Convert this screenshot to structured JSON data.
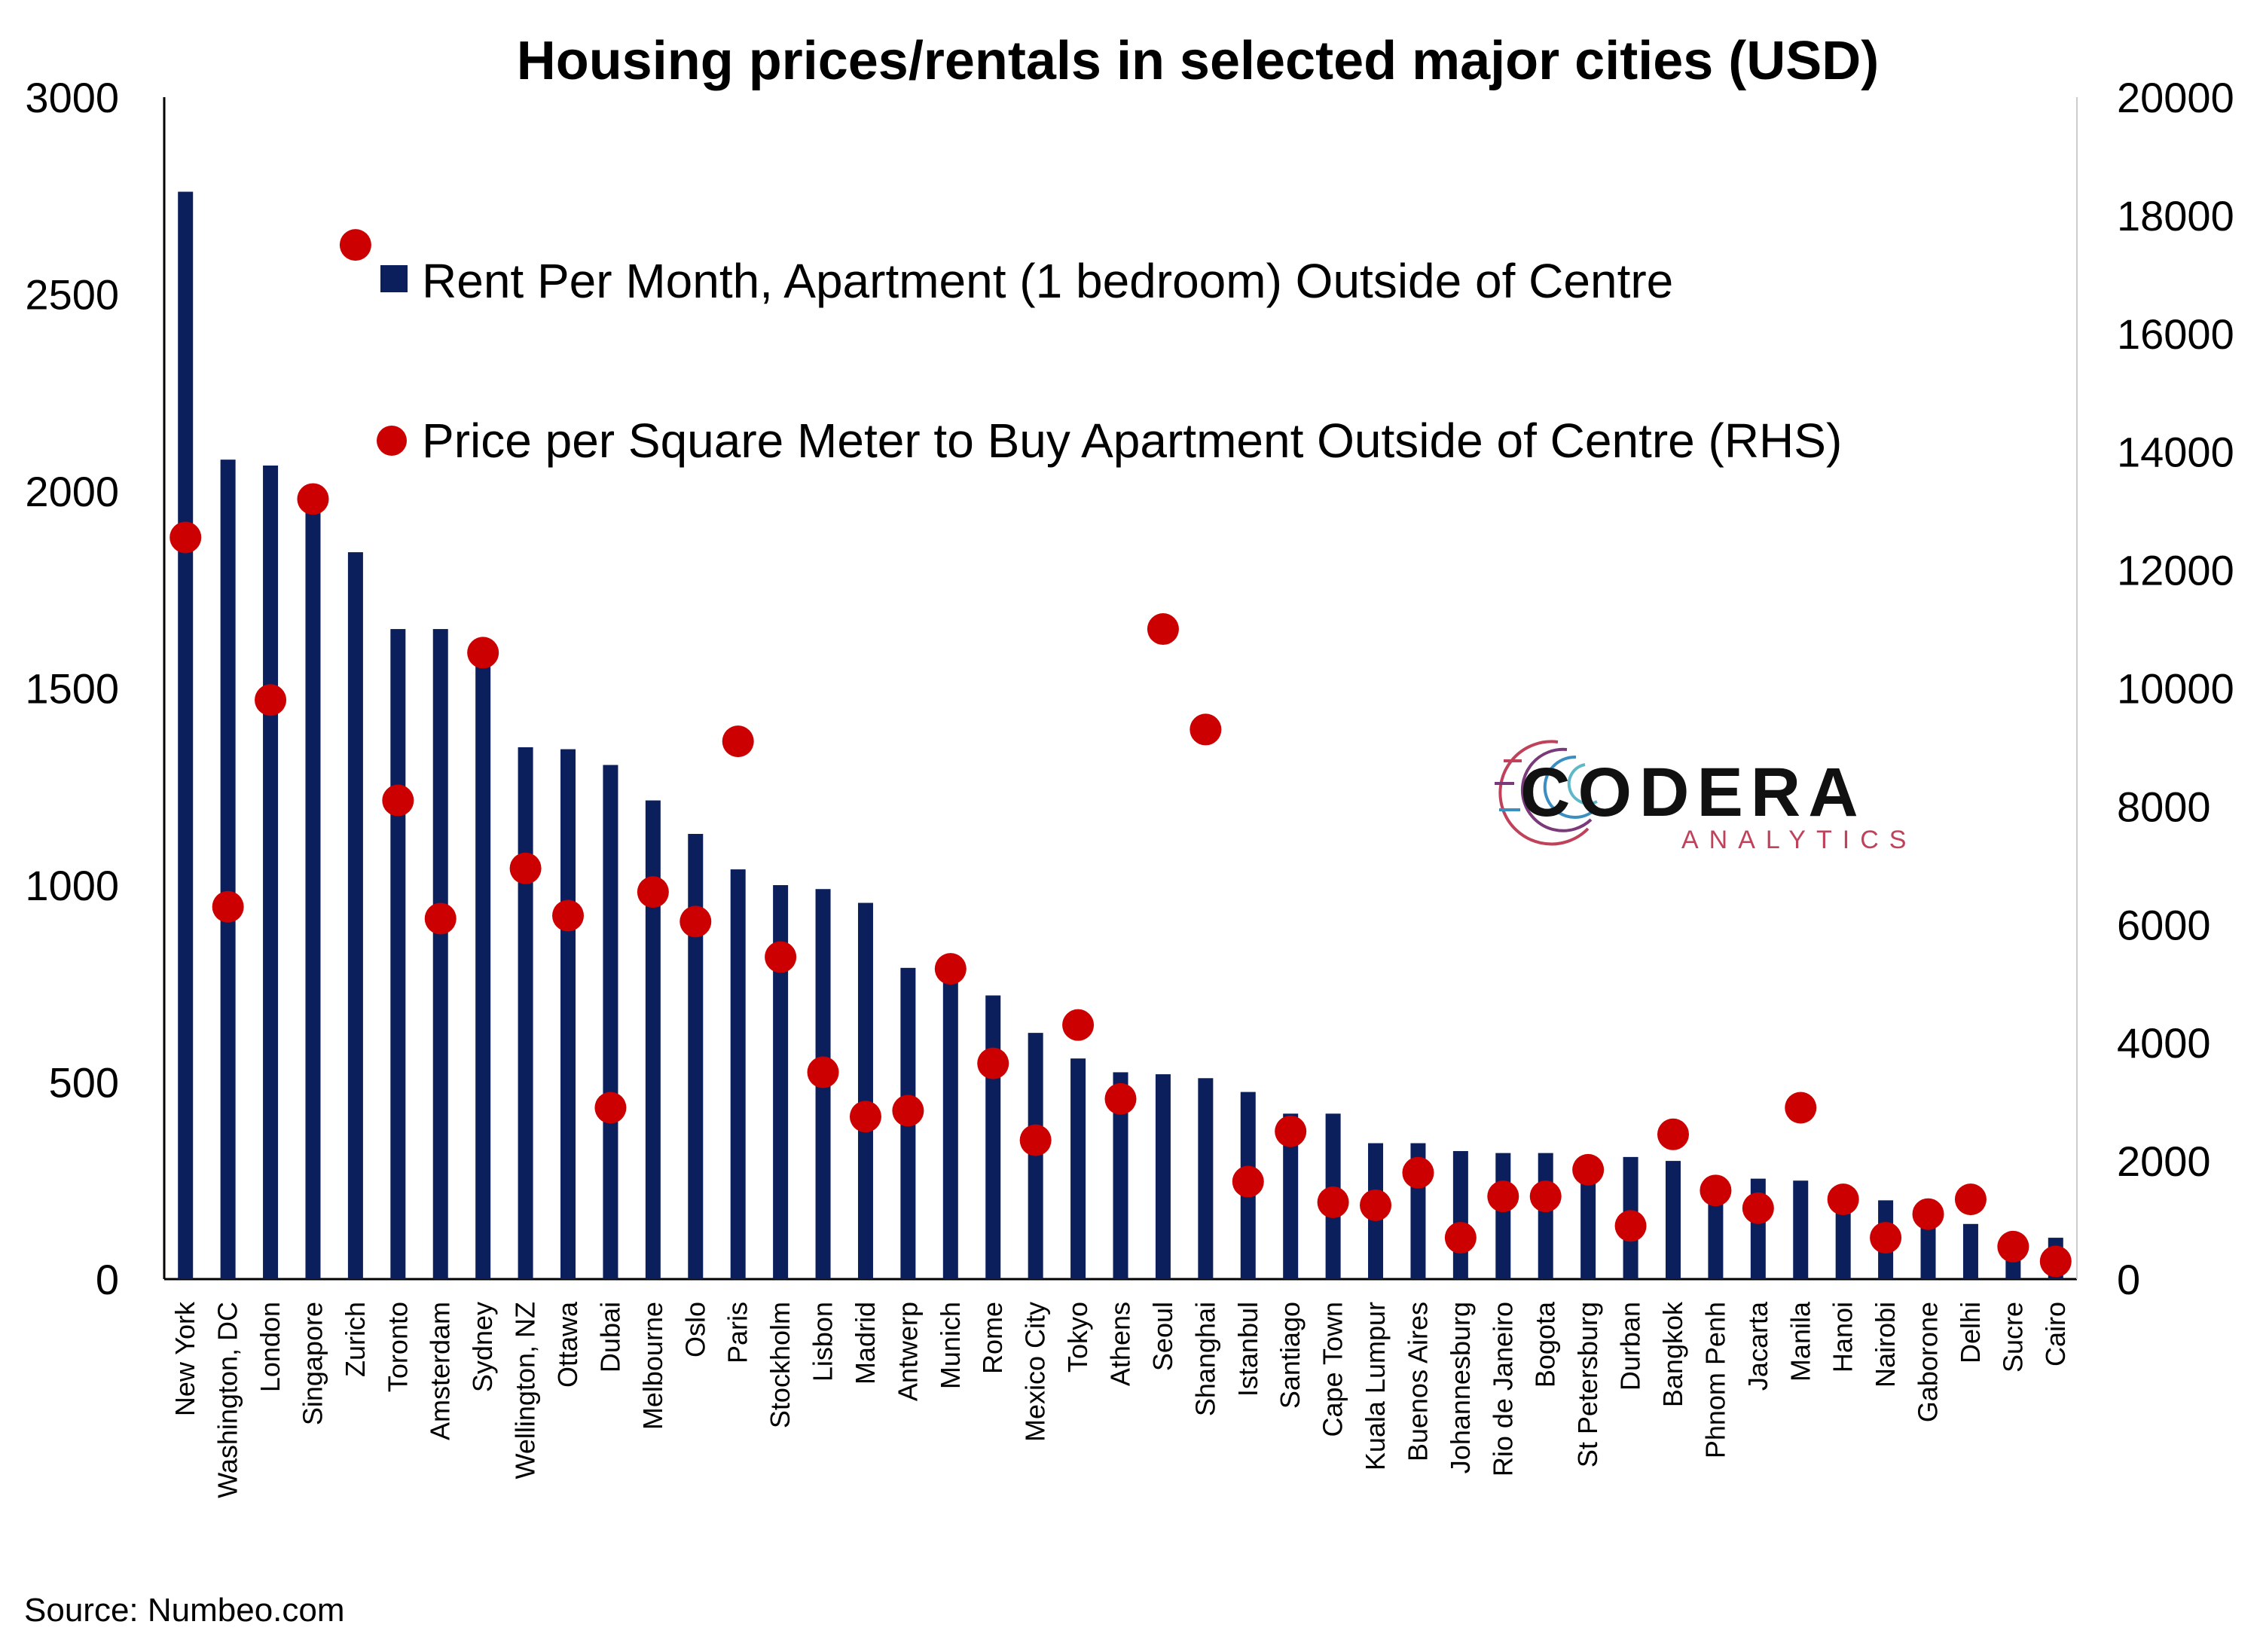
{
  "chart_data": {
    "type": "bar",
    "title": "Housing prices/rentals in selected major cities (USD)",
    "categories": [
      "New York",
      "Washington, DC",
      "London",
      "Singapore",
      "Zurich",
      "Toronto",
      "Amsterdam",
      "Sydney",
      "Wellington, NZ",
      "Ottawa",
      "Dubai",
      "Melbourne",
      "Oslo",
      "Paris",
      "Stockholm",
      "Lisbon",
      "Madrid",
      "Antwerp",
      "Munich",
      "Rome",
      "Mexico City",
      "Tokyo",
      "Athens",
      "Seoul",
      "Shanghai",
      "Istanbul",
      "Santiago",
      "Cape Town",
      "Kuala Lumpur",
      "Buenos Aires",
      "Johannesburg",
      "Rio de Janeiro",
      "Bogota",
      "St Petersburg",
      "Durban",
      "Bangkok",
      "Phnom Penh",
      "Jacarta",
      "Manila",
      "Hanoi",
      "Nairobi",
      "Gaborone",
      "Delhi",
      "Sucre",
      "Cairo"
    ],
    "series": [
      {
        "name": "Rent Per Month, Apartment (1 bedroom) Outside of Centre",
        "mark": "bar",
        "axis": "left",
        "color": "#0a1f5c",
        "values": [
          2760,
          2080,
          2065,
          1975,
          1845,
          1650,
          1650,
          1580,
          1350,
          1345,
          1305,
          1215,
          1130,
          1040,
          1000,
          990,
          955,
          790,
          785,
          720,
          625,
          560,
          525,
          520,
          510,
          475,
          420,
          420,
          345,
          345,
          325,
          320,
          320,
          260,
          310,
          300,
          225,
          255,
          250,
          205,
          200,
          170,
          140,
          100,
          105
        ]
      },
      {
        "name": "Price per Square Meter to Buy Apartment Outside of Centre (RHS)",
        "mark": "dot",
        "axis": "right",
        "color": "#cc0000",
        "values": [
          12550,
          6300,
          9800,
          13200,
          17500,
          8100,
          6100,
          10600,
          6950,
          6150,
          2900,
          6550,
          6050,
          9100,
          5450,
          3500,
          2750,
          2850,
          5250,
          3650,
          2350,
          4300,
          3050,
          11000,
          9300,
          1650,
          2500,
          1300,
          1250,
          1800,
          700,
          1400,
          1400,
          1850,
          900,
          2450,
          1500,
          1200,
          2900,
          1350,
          700,
          1100,
          1350,
          550,
          300
        ]
      }
    ],
    "ylim": [
      0,
      3000
    ],
    "yticks": [
      "0",
      "500",
      "1000",
      "1500",
      "2000",
      "2500",
      "3000"
    ],
    "y2lim": [
      0,
      20000
    ],
    "y2ticks": [
      "0",
      "2000",
      "4000",
      "6000",
      "8000",
      "10000",
      "12000",
      "14000",
      "16000",
      "18000",
      "20000"
    ],
    "legend_position": "top-center",
    "grid": false
  },
  "source_text": "Source: Numbeo.com",
  "logo": {
    "name": "CODERA",
    "tagline": "ANALYTICS",
    "icon": "circuit-arc-icon"
  }
}
